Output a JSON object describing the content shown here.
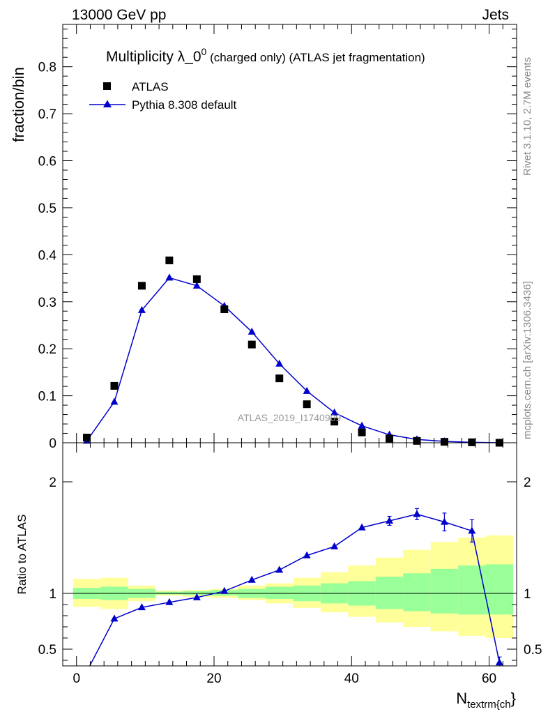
{
  "header": {
    "left": "13000 GeV pp",
    "right": "Jets"
  },
  "side": {
    "rivet": "Rivet 3.1.10,  2.7M events",
    "mcplots": "mcplots.cern.ch [arXiv:1306.3436]"
  },
  "title": {
    "main": "Multiplicity λ_0",
    "sup": "0",
    "rest": " (charged only) (ATLAS jet fragmentation)"
  },
  "watermark": "ATLAS_2019_I1740909",
  "colors": {
    "mc": "#0000cc",
    "data": "#000000",
    "band_inner": "#99ff99",
    "band_outer": "#ffff99"
  },
  "chart_data": [
    {
      "type": "scatter",
      "ylabel": "fraction/bin",
      "xlim": [
        -2,
        64
      ],
      "ylim": [
        0,
        0.89
      ],
      "yticks": [
        "0",
        "0.1",
        "0.2",
        "0.3",
        "0.4",
        "0.5",
        "0.6",
        "0.7",
        "0.8"
      ],
      "legend": {
        "placement": "top-left"
      },
      "series": [
        {
          "name": "ATLAS",
          "marker": "square",
          "x": [
            1.5,
            5.5,
            9.5,
            13.5,
            17.5,
            21.5,
            25.5,
            29.5,
            33.5,
            37.5,
            41.5,
            45.5,
            49.5,
            53.5,
            57.5,
            61.5
          ],
          "y": [
            0.011,
            0.121,
            0.334,
            0.388,
            0.348,
            0.284,
            0.209,
            0.137,
            0.082,
            0.045,
            0.022,
            0.009,
            0.004,
            0.002,
            0.001,
            0.0
          ]
        },
        {
          "name": "Pythia 8.308 default",
          "marker": "triangle",
          "x": [
            1.5,
            5.5,
            9.5,
            13.5,
            17.5,
            21.5,
            25.5,
            29.5,
            33.5,
            37.5,
            41.5,
            45.5,
            49.5,
            53.5,
            57.5,
            61.5
          ],
          "y": [
            0.004,
            0.087,
            0.282,
            0.351,
            0.334,
            0.291,
            0.236,
            0.168,
            0.11,
            0.064,
            0.036,
            0.017,
            0.007,
            0.003,
            0.001,
            0.0
          ]
        }
      ]
    },
    {
      "type": "line",
      "ylabel": "Ratio to ATLAS",
      "xlabel": "N",
      "xlabel_sub": "textrm{ch",
      "xlabel_tail": "}",
      "xlim": [
        -2,
        64
      ],
      "ylim": [
        0.35,
        2.35
      ],
      "yticks": [
        "0.5",
        "1",
        "2"
      ],
      "xticks": [
        "0",
        "20",
        "40",
        "60"
      ],
      "reference": 1,
      "bands": {
        "x_edges": [
          -0.5,
          3.5,
          7.5,
          11.5,
          15.5,
          19.5,
          23.5,
          27.5,
          31.5,
          35.5,
          39.5,
          43.5,
          47.5,
          51.5,
          55.5,
          59.5,
          63.5
        ],
        "inner_lo": [
          0.95,
          0.94,
          0.96,
          0.99,
          0.985,
          0.98,
          0.96,
          0.95,
          0.93,
          0.91,
          0.89,
          0.86,
          0.84,
          0.82,
          0.81,
          0.81
        ],
        "inner_hi": [
          1.05,
          1.06,
          1.04,
          1.015,
          1.02,
          1.03,
          1.04,
          1.06,
          1.07,
          1.09,
          1.11,
          1.15,
          1.18,
          1.22,
          1.25,
          1.26
        ],
        "outer_lo": [
          0.88,
          0.86,
          0.93,
          0.98,
          0.97,
          0.96,
          0.94,
          0.91,
          0.87,
          0.83,
          0.79,
          0.74,
          0.7,
          0.66,
          0.62,
          0.6
        ],
        "outer_hi": [
          1.13,
          1.14,
          1.07,
          1.025,
          1.03,
          1.04,
          1.07,
          1.09,
          1.14,
          1.19,
          1.25,
          1.32,
          1.39,
          1.46,
          1.5,
          1.52
        ]
      },
      "series": [
        {
          "name": "Pythia 8.308 default",
          "x": [
            1.5,
            5.5,
            9.5,
            13.5,
            17.5,
            21.5,
            25.5,
            29.5,
            33.5,
            37.5,
            41.5,
            45.5,
            49.5,
            53.5,
            57.5,
            61.5
          ],
          "y": [
            0.3,
            0.773,
            0.874,
            0.92,
            0.963,
            1.02,
            1.12,
            1.21,
            1.34,
            1.42,
            1.59,
            1.65,
            1.71,
            1.64,
            1.56,
            0.38
          ],
          "err": [
            0,
            0,
            0,
            0,
            0,
            0,
            0,
            0,
            0,
            0,
            0,
            0.04,
            0.05,
            0.08,
            0.1,
            0.05
          ]
        }
      ]
    }
  ]
}
